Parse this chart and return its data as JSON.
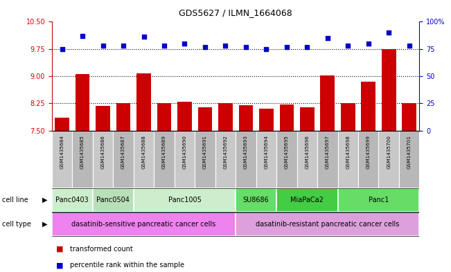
{
  "title": "GDS5627 / ILMN_1664068",
  "samples": [
    "GSM1435684",
    "GSM1435685",
    "GSM1435686",
    "GSM1435687",
    "GSM1435688",
    "GSM1435689",
    "GSM1435690",
    "GSM1435691",
    "GSM1435692",
    "GSM1435693",
    "GSM1435694",
    "GSM1435695",
    "GSM1435696",
    "GSM1435697",
    "GSM1435698",
    "GSM1435699",
    "GSM1435700",
    "GSM1435701"
  ],
  "bar_values": [
    7.85,
    9.05,
    8.18,
    8.25,
    9.08,
    8.25,
    8.3,
    8.15,
    8.25,
    8.2,
    8.1,
    8.22,
    8.15,
    9.02,
    8.25,
    8.85,
    9.75,
    8.25
  ],
  "dot_values": [
    75,
    87,
    78,
    78,
    86,
    78,
    80,
    77,
    78,
    77,
    75,
    77,
    77,
    85,
    78,
    80,
    90,
    78
  ],
  "ylim_left": [
    7.5,
    10.5
  ],
  "ylim_right": [
    0,
    100
  ],
  "yticks_left": [
    7.5,
    8.25,
    9.0,
    9.75,
    10.5
  ],
  "yticks_right": [
    0,
    25,
    50,
    75,
    100
  ],
  "hlines": [
    9.75,
    9.0,
    8.25
  ],
  "bar_color": "#cc0000",
  "dot_color": "#0000cc",
  "bar_baseline": 7.5,
  "cell_line_data": [
    {
      "label": "Panc0403",
      "span": [
        0,
        2
      ],
      "color": "#cceecc"
    },
    {
      "label": "Panc0504",
      "span": [
        2,
        4
      ],
      "color": "#b8e0b8"
    },
    {
      "label": "Panc1005",
      "span": [
        4,
        9
      ],
      "color": "#cceecc"
    },
    {
      "label": "SU8686",
      "span": [
        9,
        11
      ],
      "color": "#66dd66"
    },
    {
      "label": "MiaPaCa2",
      "span": [
        11,
        14
      ],
      "color": "#44cc44"
    },
    {
      "label": "Panc1",
      "span": [
        14,
        18
      ],
      "color": "#66dd66"
    }
  ],
  "cell_type_data": [
    {
      "label": "dasatinib-sensitive pancreatic cancer cells",
      "span": [
        0,
        9
      ],
      "color": "#ee82ee"
    },
    {
      "label": "dasatinib-resistant pancreatic cancer cells",
      "span": [
        9,
        18
      ],
      "color": "#dda0dd"
    }
  ],
  "sample_box_color": "#bbbbbb",
  "legend": [
    {
      "label": "transformed count",
      "color": "#cc0000"
    },
    {
      "label": "percentile rank within the sample",
      "color": "#0000cc"
    }
  ]
}
